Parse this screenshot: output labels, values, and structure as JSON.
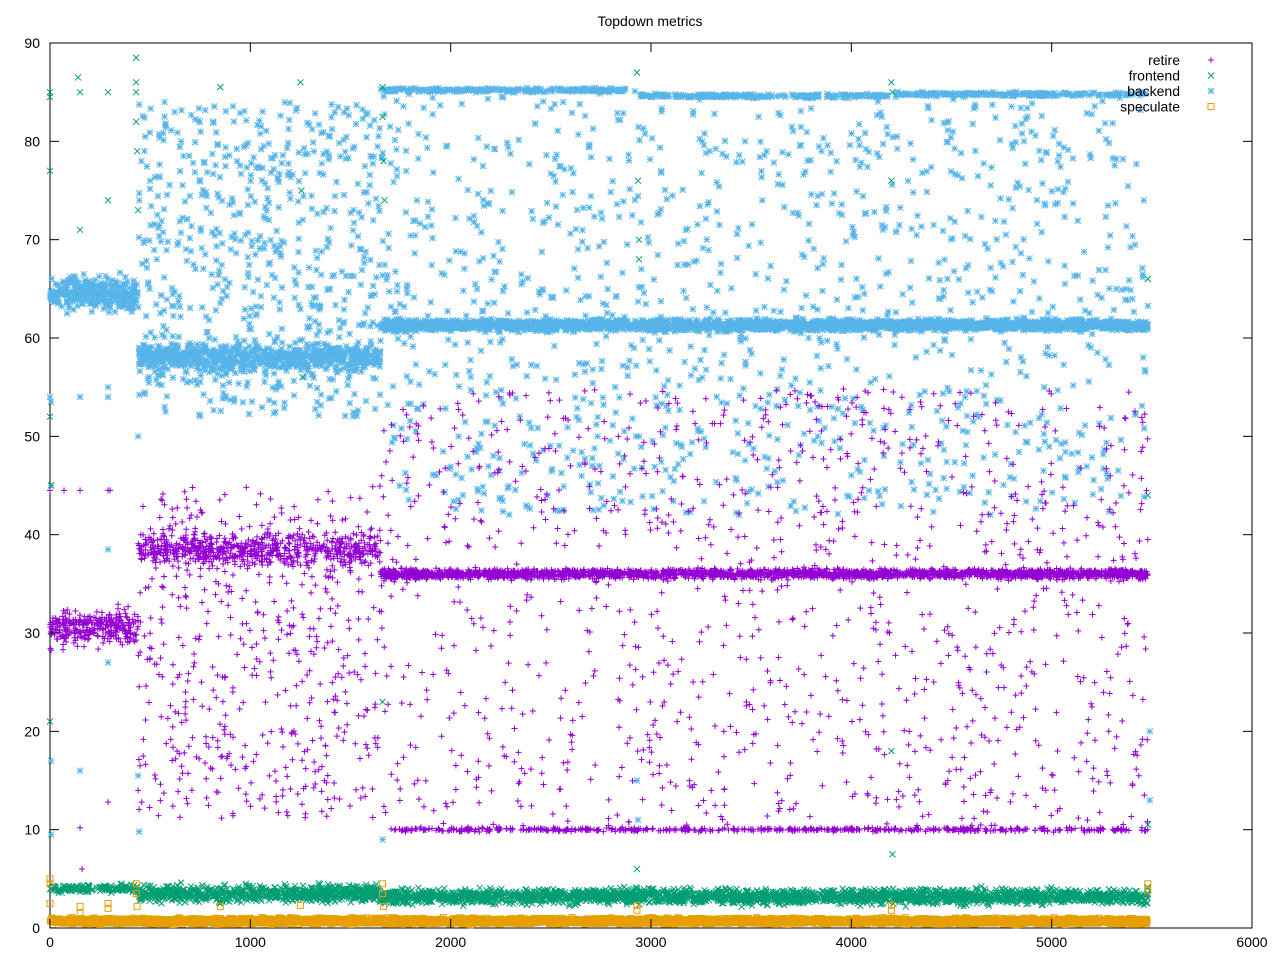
{
  "chart_data": {
    "type": "scatter",
    "title": "Topdown metrics",
    "xlabel": "",
    "ylabel": "",
    "xlim": [
      0,
      6000
    ],
    "ylim": [
      0,
      90
    ],
    "x_ticks": [
      0,
      1000,
      2000,
      3000,
      4000,
      5000,
      6000
    ],
    "y_ticks": [
      0,
      10,
      20,
      30,
      40,
      50,
      60,
      70,
      80,
      90
    ],
    "grid": false,
    "legend_position": "top-right",
    "series": [
      {
        "name": "retire",
        "color": "#9400d3",
        "marker": "plus",
        "bands": [
          {
            "x_range": [
              0,
              440
            ],
            "y_center": 30.5,
            "spread": 2.5,
            "density": 2.0
          },
          {
            "x_range": [
              440,
              1650
            ],
            "y_center": 38.5,
            "spread": 2.5,
            "density": 1.6
          },
          {
            "x_range": [
              1650,
              5480
            ],
            "y_center": 36.0,
            "spread": 0.7,
            "density": 1.8
          },
          {
            "x_range": [
              1680,
              5480
            ],
            "y_center": 10.0,
            "spread": 0.3,
            "density": 0.4
          }
        ],
        "scatter_ranges": [
          {
            "x_range": [
              440,
              1650
            ],
            "y_range": [
              11,
              45
            ],
            "count": 520
          },
          {
            "x_range": [
              1650,
              5480
            ],
            "y_range": [
              10,
              55
            ],
            "count": 1150
          }
        ],
        "points": [
          [
            0,
            44.5
          ],
          [
            70,
            44.5
          ],
          [
            150,
            44.5
          ],
          [
            290,
            44.5
          ],
          [
            300,
            44.5
          ],
          [
            150,
            10.2
          ],
          [
            290,
            12.8
          ],
          [
            160,
            6.0
          ],
          [
            440,
            14.0
          ],
          [
            450,
            16.5
          ]
        ]
      },
      {
        "name": "frontend",
        "color": "#009e73",
        "marker": "x",
        "bands": [
          {
            "x_range": [
              0,
              440
            ],
            "y_center": 4.0,
            "spread": 0.6,
            "density": 1.0
          },
          {
            "x_range": [
              440,
              1650
            ],
            "y_center": 3.5,
            "spread": 1.2,
            "density": 1.8
          },
          {
            "x_range": [
              1650,
              5480
            ],
            "y_center": 3.2,
            "spread": 1.1,
            "density": 1.8
          }
        ],
        "scatter_ranges": [],
        "points": [
          [
            0,
            85.0
          ],
          [
            0,
            84.5
          ],
          [
            0,
            77.0
          ],
          [
            0,
            52.0
          ],
          [
            0,
            21.0
          ],
          [
            5,
            45.0
          ],
          [
            140,
            86.5
          ],
          [
            150,
            85.0
          ],
          [
            150,
            71.0
          ],
          [
            290,
            85.0
          ],
          [
            290,
            74.0
          ],
          [
            430,
            88.5
          ],
          [
            430,
            86.0
          ],
          [
            430,
            85.0
          ],
          [
            430,
            82.0
          ],
          [
            435,
            79.0
          ],
          [
            440,
            73.0
          ],
          [
            850,
            85.5
          ],
          [
            1250,
            86.0
          ],
          [
            1255,
            75.0
          ],
          [
            1260,
            56.0
          ],
          [
            1660,
            85.5
          ],
          [
            1660,
            82.5
          ],
          [
            1665,
            78.0
          ],
          [
            1670,
            74.0
          ],
          [
            1660,
            23.0
          ],
          [
            2930,
            87.0
          ],
          [
            2935,
            76.0
          ],
          [
            2940,
            70.0
          ],
          [
            2940,
            68.0
          ],
          [
            2930,
            6.0
          ],
          [
            4200,
            86.0
          ],
          [
            4205,
            85.0
          ],
          [
            4200,
            76.0
          ],
          [
            4200,
            18.0
          ],
          [
            4205,
            7.5
          ],
          [
            5480,
            66.0
          ],
          [
            5480,
            44.0
          ],
          [
            5480,
            10.5
          ]
        ]
      },
      {
        "name": "backend",
        "color": "#56b4e9",
        "marker": "star",
        "bands": [
          {
            "x_range": [
              0,
              440
            ],
            "y_center": 64.5,
            "spread": 2.5,
            "density": 2.0
          },
          {
            "x_range": [
              440,
              1650
            ],
            "y_center": 58.0,
            "spread": 2.0,
            "density": 1.6
          },
          {
            "x_range": [
              1650,
              5480
            ],
            "y_center": 61.3,
            "spread": 0.8,
            "density": 1.8
          },
          {
            "x_range": [
              1650,
              2920
            ],
            "y_center": 85.2,
            "spread": 0.3,
            "density": 0.5
          },
          {
            "x_range": [
              2940,
              4180
            ],
            "y_center": 84.6,
            "spread": 0.3,
            "density": 0.5
          },
          {
            "x_range": [
              4220,
              5480
            ],
            "y_center": 84.8,
            "spread": 0.3,
            "density": 0.5
          }
        ],
        "scatter_ranges": [
          {
            "x_range": [
              440,
              1650
            ],
            "y_range": [
              52,
              84
            ],
            "count": 650
          },
          {
            "x_range": [
              1650,
              5480
            ],
            "y_range": [
              42,
              85
            ],
            "count": 1250
          }
        ],
        "points": [
          [
            0,
            54.0
          ],
          [
            5,
            53.5
          ],
          [
            5,
            45.0
          ],
          [
            5,
            17.0
          ],
          [
            5,
            9.5
          ],
          [
            150,
            54.0
          ],
          [
            150,
            16.0
          ],
          [
            290,
            54.0
          ],
          [
            290,
            55.0
          ],
          [
            290,
            38.5
          ],
          [
            290,
            27.0
          ],
          [
            440,
            50.0
          ],
          [
            440,
            15.5
          ],
          [
            445,
            9.8
          ],
          [
            1660,
            9.0
          ],
          [
            2930,
            15.0
          ],
          [
            2935,
            11.0
          ],
          [
            5490,
            20.0
          ],
          [
            5490,
            13.0
          ]
        ]
      },
      {
        "name": "speculate",
        "color": "#e69f00",
        "marker": "square",
        "bands": [
          {
            "x_range": [
              0,
              5480
            ],
            "y_center": 0.7,
            "spread": 0.4,
            "density": 2.0
          }
        ],
        "scatter_ranges": [],
        "points": [
          [
            0,
            5.0
          ],
          [
            0,
            4.5
          ],
          [
            0,
            2.5
          ],
          [
            150,
            2.2
          ],
          [
            150,
            1.5
          ],
          [
            290,
            2.5
          ],
          [
            290,
            2.0
          ],
          [
            430,
            4.5
          ],
          [
            430,
            3.5
          ],
          [
            435,
            2.2
          ],
          [
            850,
            2.2
          ],
          [
            1250,
            2.3
          ],
          [
            1660,
            4.5
          ],
          [
            1660,
            3.5
          ],
          [
            1665,
            2.2
          ],
          [
            2930,
            2.3
          ],
          [
            2930,
            1.8
          ],
          [
            4200,
            2.3
          ],
          [
            4200,
            1.8
          ],
          [
            5480,
            4.5
          ],
          [
            5480,
            3.8
          ]
        ]
      }
    ]
  }
}
